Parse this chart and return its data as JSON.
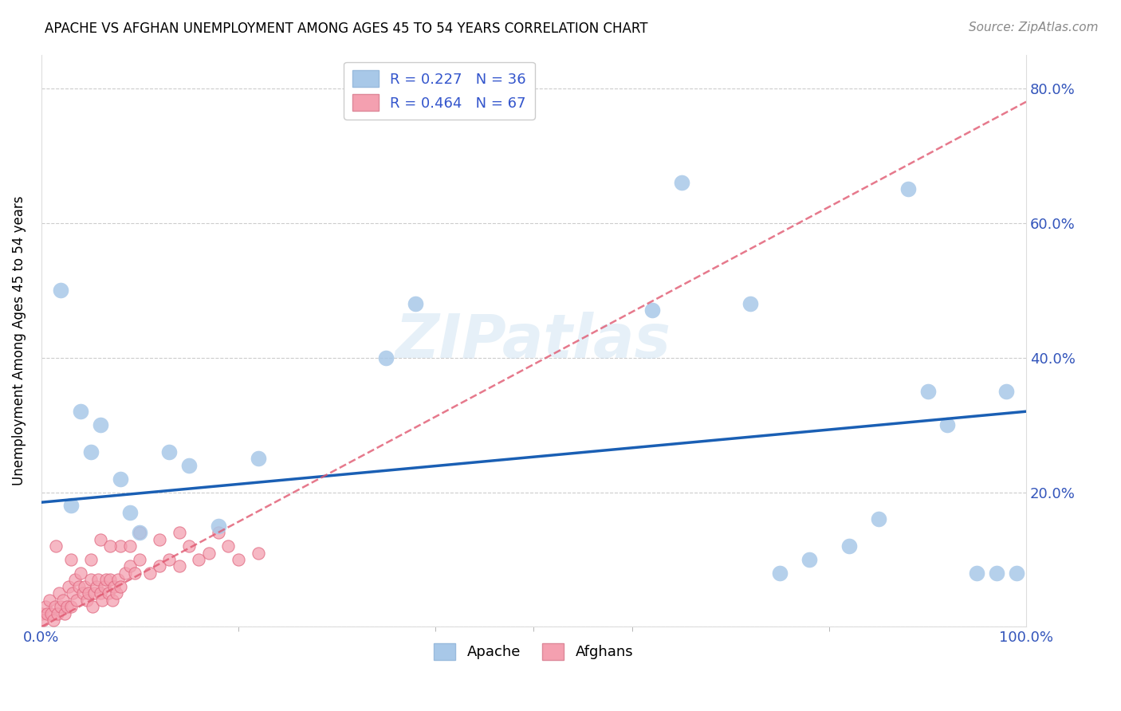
{
  "title": "APACHE VS AFGHAN UNEMPLOYMENT AMONG AGES 45 TO 54 YEARS CORRELATION CHART",
  "source": "Source: ZipAtlas.com",
  "ylabel": "Unemployment Among Ages 45 to 54 years",
  "xlim": [
    0.0,
    1.0
  ],
  "ylim": [
    0.0,
    0.85
  ],
  "yticks": [
    0.0,
    0.2,
    0.4,
    0.6,
    0.8
  ],
  "ytick_labels": [
    "",
    "20.0%",
    "40.0%",
    "60.0%",
    "80.0%"
  ],
  "apache_color": "#a8c8e8",
  "afghan_color": "#f4a0b0",
  "apache_line_color": "#1a5fb4",
  "afghan_line_color": "#e05870",
  "apache_R": 0.227,
  "apache_N": 36,
  "afghan_R": 0.464,
  "afghan_N": 67,
  "watermark": "ZIPatlas",
  "apache_scatter_x": [
    0.02,
    0.03,
    0.04,
    0.05,
    0.06,
    0.08,
    0.09,
    0.1,
    0.13,
    0.15,
    0.18,
    0.22,
    0.35,
    0.38,
    0.62,
    0.65,
    0.72,
    0.75,
    0.78,
    0.82,
    0.85,
    0.88,
    0.9,
    0.92,
    0.95,
    0.97,
    0.98,
    0.99
  ],
  "apache_scatter_y": [
    0.5,
    0.18,
    0.32,
    0.26,
    0.3,
    0.22,
    0.17,
    0.14,
    0.26,
    0.24,
    0.15,
    0.25,
    0.4,
    0.48,
    0.47,
    0.66,
    0.48,
    0.08,
    0.1,
    0.12,
    0.16,
    0.65,
    0.35,
    0.3,
    0.08,
    0.08,
    0.35,
    0.08
  ],
  "afghan_scatter_x": [
    0.0,
    0.002,
    0.004,
    0.006,
    0.008,
    0.01,
    0.012,
    0.014,
    0.016,
    0.018,
    0.02,
    0.022,
    0.024,
    0.026,
    0.028,
    0.03,
    0.032,
    0.034,
    0.036,
    0.038,
    0.04,
    0.042,
    0.044,
    0.046,
    0.048,
    0.05,
    0.052,
    0.054,
    0.056,
    0.058,
    0.06,
    0.062,
    0.064,
    0.066,
    0.068,
    0.07,
    0.072,
    0.074,
    0.076,
    0.078,
    0.08,
    0.085,
    0.09,
    0.095,
    0.1,
    0.11,
    0.12,
    0.13,
    0.14,
    0.15,
    0.16,
    0.17,
    0.18,
    0.19,
    0.2,
    0.22,
    0.06,
    0.08,
    0.1,
    0.12,
    0.14,
    0.07,
    0.09,
    0.05,
    0.03,
    0.015
  ],
  "afghan_scatter_y": [
    0.02,
    0.01,
    0.03,
    0.02,
    0.04,
    0.02,
    0.01,
    0.03,
    0.02,
    0.05,
    0.03,
    0.04,
    0.02,
    0.03,
    0.06,
    0.03,
    0.05,
    0.07,
    0.04,
    0.06,
    0.08,
    0.05,
    0.06,
    0.04,
    0.05,
    0.07,
    0.03,
    0.05,
    0.06,
    0.07,
    0.05,
    0.04,
    0.06,
    0.07,
    0.05,
    0.07,
    0.04,
    0.06,
    0.05,
    0.07,
    0.06,
    0.08,
    0.09,
    0.08,
    0.1,
    0.08,
    0.09,
    0.1,
    0.09,
    0.12,
    0.1,
    0.11,
    0.14,
    0.12,
    0.1,
    0.11,
    0.13,
    0.12,
    0.14,
    0.13,
    0.14,
    0.12,
    0.12,
    0.1,
    0.1,
    0.12
  ],
  "apache_line_x": [
    0.0,
    1.0
  ],
  "apache_line_y": [
    0.185,
    0.32
  ],
  "afghan_line_x": [
    0.0,
    1.0
  ],
  "afghan_line_y": [
    0.0,
    0.78
  ]
}
